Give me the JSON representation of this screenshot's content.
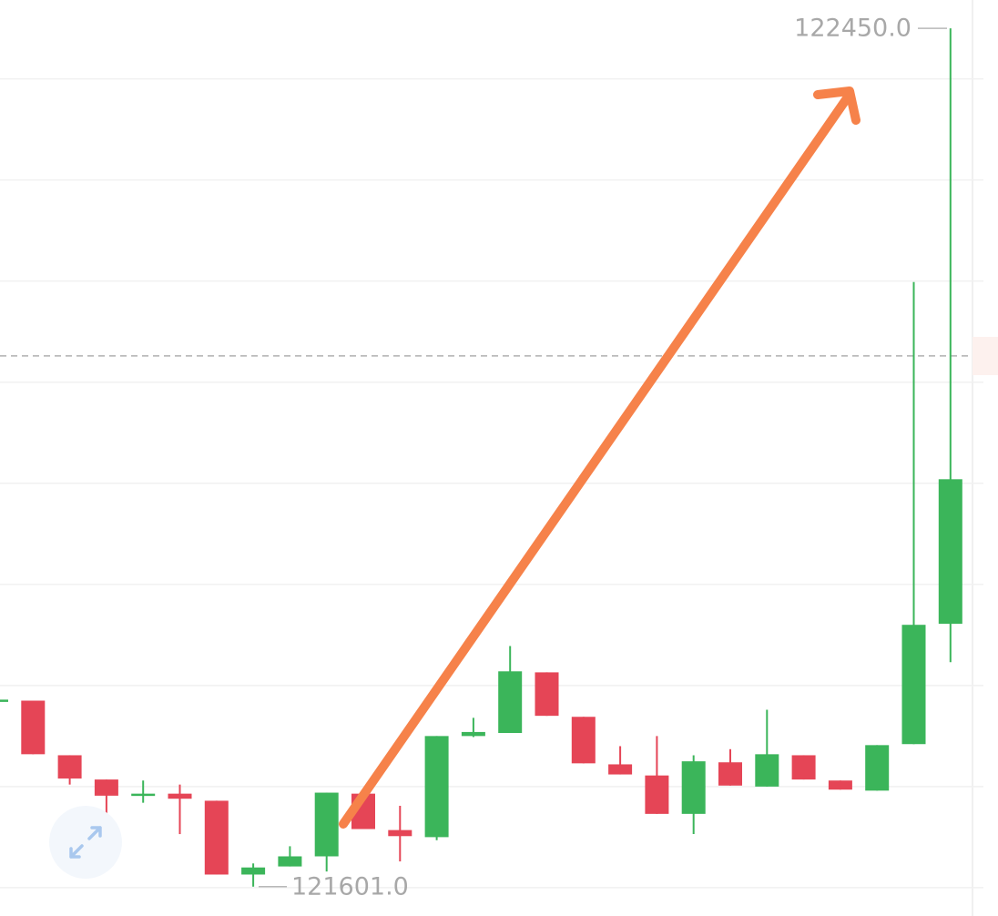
{
  "chart_data": {
    "type": "candlestick",
    "up_color": "#3bb55a",
    "down_color": "#e54556",
    "open": [
      121785,
      121785,
      121731,
      121707,
      121691,
      121693,
      121686,
      121613,
      121621,
      121631,
      121693,
      121657,
      121650,
      121750,
      121753,
      121813,
      121769,
      121722,
      121711,
      121673,
      121724,
      121700,
      121731,
      121706,
      121696,
      121742,
      121861
    ],
    "high": [
      121786,
      121785,
      121731,
      121707,
      121706,
      121702,
      121686,
      121624,
      121641,
      121694,
      121693,
      121681,
      121750,
      121768,
      121839,
      121813,
      121769,
      121740,
      121750,
      121731,
      121737,
      121776,
      121731,
      121706,
      121741,
      122199,
      122450
    ],
    "low": [
      121785,
      121732,
      121702,
      121673,
      121684,
      121653,
      121613,
      121601,
      121621,
      121616,
      121658,
      121626,
      121647,
      121749,
      121753,
      121770,
      121723,
      121712,
      121673,
      121653,
      121701,
      121700,
      121707,
      121697,
      121696,
      121742,
      121823
    ],
    "close": [
      121786,
      121732,
      121708,
      121691,
      121693,
      121688,
      121613,
      121620,
      121631,
      121694,
      121658,
      121651,
      121750,
      121754,
      121814,
      121770,
      121723,
      121712,
      121673,
      121725,
      121701,
      121732,
      121707,
      121697,
      121741,
      121860,
      122004
    ],
    "ylim": [
      121572,
      122478
    ],
    "gridlines": [
      122400,
      122300,
      122200,
      122100,
      122000,
      121900,
      121800,
      121700,
      121600
    ],
    "price_line": 122126,
    "max_marker": {
      "value": 122450,
      "label": "122450.0"
    },
    "min_marker": {
      "value": 121601,
      "label": "121601.0"
    }
  }
}
